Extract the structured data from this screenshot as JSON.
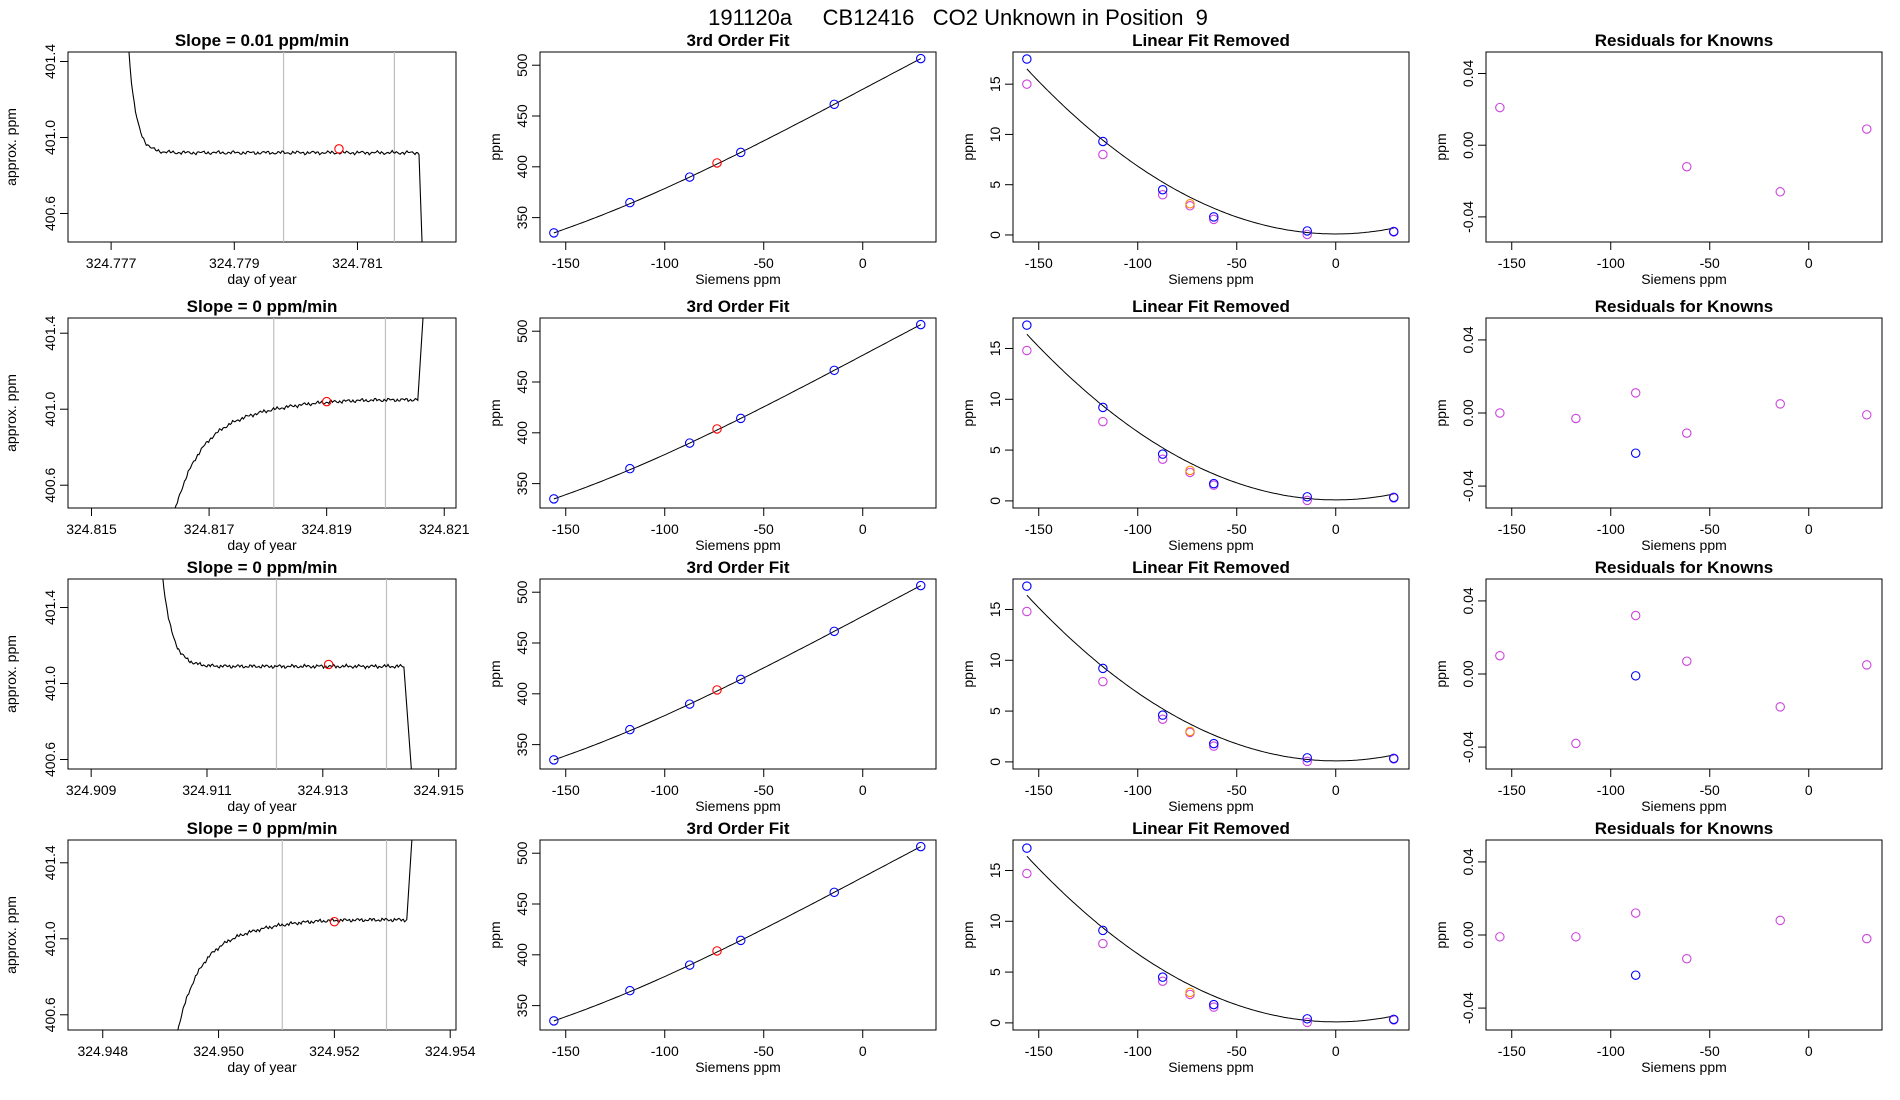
{
  "figure": {
    "title": "191120a     CB12416   CO2 Unknown in Position  9"
  },
  "colors": {
    "axis": "#000000",
    "trace": "#000000",
    "vline": "#bebebe",
    "known": "#0000ff",
    "unknown": "#ff0000",
    "unknown_lfr": "#ff8c00",
    "raw": "#cc44dd"
  },
  "chart_data": [
    {
      "type": "line",
      "row": 0,
      "col": 0,
      "title": "Slope =  0.01  ppm/min",
      "xlabel": "day of year",
      "ylabel": "approx. ppm",
      "xlim": [
        324.7763,
        324.7826
      ],
      "ylim": [
        400.45,
        401.45
      ],
      "xticks": [
        324.777,
        324.779,
        324.781
      ],
      "xtick_labels": [
        "324.777",
        "324.779",
        "324.781"
      ],
      "yticks": [
        400.6,
        401.0,
        401.4
      ],
      "ytick_labels": [
        "400.6",
        "401.0",
        "401.4"
      ],
      "vlines": [
        324.7798,
        324.7816
      ],
      "trace": {
        "x0": 324.7772,
        "x_settle": 324.7777,
        "x_end": 324.782,
        "x_fall": 324.78208,
        "level": 400.92,
        "start_from": "high"
      },
      "marker": {
        "x": 324.7807,
        "y": 400.94
      }
    },
    {
      "type": "line",
      "row": 1,
      "col": 0,
      "title": "Slope =  0  ppm/min",
      "xlabel": "day of year",
      "ylabel": "approx. ppm",
      "xlim": [
        324.8146,
        324.8212
      ],
      "ylim": [
        400.48,
        401.48
      ],
      "xticks": [
        324.815,
        324.817,
        324.819,
        324.821
      ],
      "xtick_labels": [
        "324.815",
        "324.817",
        "324.819",
        "324.821"
      ],
      "yticks": [
        400.6,
        401.0,
        401.4
      ],
      "ytick_labels": [
        "400.6",
        "401.0",
        "401.4"
      ],
      "vlines": [
        324.8181,
        324.82
      ],
      "trace": {
        "x0": 324.81605,
        "x_settle": 324.8175,
        "x_end": 324.82055,
        "x_fall": 324.8207,
        "level": 401.05,
        "start_from": "low"
      },
      "marker": {
        "x": 324.819,
        "y": 401.04
      }
    },
    {
      "type": "line",
      "row": 2,
      "col": 0,
      "title": "Slope =  0  ppm/min",
      "xlabel": "day of year",
      "ylabel": "approx. ppm",
      "xlim": [
        324.9086,
        324.9153
      ],
      "ylim": [
        400.55,
        401.55
      ],
      "xticks": [
        324.909,
        324.911,
        324.913,
        324.915
      ],
      "xtick_labels": [
        "324.909",
        "324.911",
        "324.913",
        "324.915"
      ],
      "yticks": [
        400.6,
        401.0,
        401.4
      ],
      "ytick_labels": [
        "400.6",
        "401.0",
        "401.4"
      ],
      "vlines": [
        324.9122,
        324.9141
      ],
      "trace": {
        "x0": 324.9101,
        "x_settle": 324.9108,
        "x_end": 324.9144,
        "x_fall": 324.9146,
        "level": 401.09,
        "start_from": "high"
      },
      "marker": {
        "x": 324.9131,
        "y": 401.1
      }
    },
    {
      "type": "line",
      "row": 3,
      "col": 0,
      "title": "Slope =  0  ppm/min",
      "xlabel": "day of year",
      "ylabel": "approx. ppm",
      "xlim": [
        324.9474,
        324.9541
      ],
      "ylim": [
        400.52,
        401.52
      ],
      "xticks": [
        324.948,
        324.95,
        324.952,
        324.954
      ],
      "xtick_labels": [
        "324.948",
        "324.950",
        "324.952",
        "324.954"
      ],
      "yticks": [
        400.6,
        401.0,
        401.4
      ],
      "ytick_labels": [
        "400.6",
        "401.0",
        "401.4"
      ],
      "vlines": [
        324.9511,
        324.9529
      ],
      "trace": {
        "x0": 324.94898,
        "x_settle": 324.9502,
        "x_end": 324.95325,
        "x_fall": 324.9534,
        "level": 401.1,
        "start_from": "low"
      },
      "marker": {
        "x": 324.952,
        "y": 401.09
      }
    },
    {
      "type": "scatter",
      "row": 0,
      "col": 1,
      "title": "3rd Order Fit",
      "xlabel": "Siemens ppm",
      "ylabel": "ppm",
      "xlim": [
        -163,
        37
      ],
      "ylim": [
        326,
        513
      ],
      "xticks": [
        -150,
        -100,
        -50,
        0
      ],
      "xtick_labels": [
        "-150",
        "-100",
        "-50",
        "0"
      ],
      "yticks": [
        350,
        400,
        450,
        500
      ],
      "ytick_labels": [
        "350",
        "400",
        "450",
        "500"
      ],
      "knowns": {
        "x": [
          -156,
          -117.6,
          -87.4,
          -61.6,
          -14.4,
          29.3
        ],
        "y": [
          335,
          364.7,
          389.9,
          414.2,
          461.5,
          506.5
        ]
      },
      "unknown": {
        "x": [
          -73.6
        ],
        "y": [
          403.8
        ]
      },
      "curve": {
        "type": "cubic_through_knowns"
      }
    },
    {
      "type": "scatter",
      "row": 1,
      "col": 1,
      "title": "3rd Order Fit",
      "xlabel": "Siemens ppm",
      "ylabel": "ppm",
      "xlim": [
        -163,
        37
      ],
      "ylim": [
        326,
        513
      ],
      "xticks": [
        -150,
        -100,
        -50,
        0
      ],
      "xtick_labels": [
        "-150",
        "-100",
        "-50",
        "0"
      ],
      "yticks": [
        350,
        400,
        450,
        500
      ],
      "ytick_labels": [
        "350",
        "400",
        "450",
        "500"
      ],
      "knowns": {
        "x": [
          -156,
          -117.6,
          -87.4,
          -61.6,
          -14.4,
          29.3
        ],
        "y": [
          335,
          364.7,
          389.9,
          414.2,
          461.5,
          506.5
        ]
      },
      "unknown": {
        "x": [
          -73.6
        ],
        "y": [
          403.8
        ]
      },
      "curve": {
        "type": "cubic_through_knowns"
      }
    },
    {
      "type": "scatter",
      "row": 2,
      "col": 1,
      "title": "3rd Order Fit",
      "xlabel": "Siemens ppm",
      "ylabel": "ppm",
      "xlim": [
        -163,
        37
      ],
      "ylim": [
        326,
        513
      ],
      "xticks": [
        -150,
        -100,
        -50,
        0
      ],
      "xtick_labels": [
        "-150",
        "-100",
        "-50",
        "0"
      ],
      "yticks": [
        350,
        400,
        450,
        500
      ],
      "ytick_labels": [
        "350",
        "400",
        "450",
        "500"
      ],
      "knowns": {
        "x": [
          -156,
          -117.6,
          -87.4,
          -61.6,
          -14.4,
          29.3
        ],
        "y": [
          335,
          364.7,
          389.9,
          414.2,
          461.5,
          506.5
        ]
      },
      "unknown": {
        "x": [
          -73.6
        ],
        "y": [
          403.8
        ]
      },
      "curve": {
        "type": "cubic_through_knowns"
      }
    },
    {
      "type": "scatter",
      "row": 3,
      "col": 1,
      "title": "3rd Order Fit",
      "xlabel": "Siemens ppm",
      "ylabel": "ppm",
      "xlim": [
        -163,
        37
      ],
      "ylim": [
        326,
        513
      ],
      "xticks": [
        -150,
        -100,
        -50,
        0
      ],
      "xtick_labels": [
        "-150",
        "-100",
        "-50",
        "0"
      ],
      "yticks": [
        350,
        400,
        450,
        500
      ],
      "ytick_labels": [
        "350",
        "400",
        "450",
        "500"
      ],
      "knowns": {
        "x": [
          -156,
          -117.6,
          -87.4,
          -61.6,
          -14.4,
          29.3
        ],
        "y": [
          335,
          364.7,
          389.9,
          414.2,
          461.5,
          506.5
        ]
      },
      "unknown": {
        "x": [
          -73.6
        ],
        "y": [
          403.8
        ]
      },
      "curve": {
        "type": "cubic_through_knowns"
      }
    },
    {
      "type": "scatter",
      "row": 0,
      "col": 2,
      "title": "Linear Fit Removed",
      "xlabel": "Siemens ppm",
      "ylabel": "ppm",
      "xlim": [
        -163,
        37
      ],
      "ylim": [
        -0.7,
        18.2
      ],
      "xticks": [
        -150,
        -100,
        -50,
        0
      ],
      "xtick_labels": [
        "-150",
        "-100",
        "-50",
        "0"
      ],
      "yticks": [
        0,
        5,
        10,
        15
      ],
      "ytick_labels": [
        "0",
        "5",
        "10",
        "15"
      ],
      "knowns": {
        "x": [
          -156,
          -117.6,
          -87.4,
          -61.6,
          -14.4,
          29.3
        ],
        "y": [
          17.5,
          9.3,
          4.5,
          1.8,
          0.4,
          0.35
        ]
      },
      "raw": {
        "x": [
          -156,
          -117.6,
          -87.4,
          -73.6,
          -61.6,
          -14.4,
          29.3
        ],
        "y": [
          15,
          8,
          4.0,
          2.9,
          1.55,
          0.05,
          0.3
        ]
      },
      "unknown": {
        "x": [
          -73.6
        ],
        "y": [
          3.1
        ]
      },
      "curve": {
        "type": "quadratic",
        "a": 0.0006745,
        "b": 0,
        "c": 0.1
      }
    },
    {
      "type": "scatter",
      "row": 1,
      "col": 2,
      "title": "Linear Fit Removed",
      "xlabel": "Siemens ppm",
      "ylabel": "ppm",
      "xlim": [
        -163,
        37
      ],
      "ylim": [
        -0.7,
        18.0
      ],
      "xticks": [
        -150,
        -100,
        -50,
        0
      ],
      "xtick_labels": [
        "-150",
        "-100",
        "-50",
        "0"
      ],
      "yticks": [
        0,
        5,
        10,
        15
      ],
      "ytick_labels": [
        "0",
        "5",
        "10",
        "15"
      ],
      "knowns": {
        "x": [
          -156,
          -117.6,
          -87.4,
          -61.6,
          -14.4,
          29.3
        ],
        "y": [
          17.3,
          9.2,
          4.6,
          1.7,
          0.4,
          0.35
        ]
      },
      "raw": {
        "x": [
          -156,
          -117.6,
          -87.4,
          -73.6,
          -61.6,
          -14.4,
          29.3
        ],
        "y": [
          14.8,
          7.8,
          4.1,
          2.8,
          1.55,
          0.05,
          0.3
        ]
      },
      "unknown": {
        "x": [
          -73.6
        ],
        "y": [
          3.0
        ]
      },
      "curve": {
        "type": "quadratic",
        "a": 0.00067,
        "b": 0,
        "c": 0.1
      }
    },
    {
      "type": "scatter",
      "row": 2,
      "col": 2,
      "title": "Linear Fit Removed",
      "xlabel": "Siemens ppm",
      "ylabel": "ppm",
      "xlim": [
        -163,
        37
      ],
      "ylim": [
        -0.7,
        18.0
      ],
      "xticks": [
        -150,
        -100,
        -50,
        0
      ],
      "xtick_labels": [
        "-150",
        "-100",
        "-50",
        "0"
      ],
      "yticks": [
        0,
        5,
        10,
        15
      ],
      "ytick_labels": [
        "0",
        "5",
        "10",
        "15"
      ],
      "knowns": {
        "x": [
          -156,
          -117.6,
          -87.4,
          -61.6,
          -14.4,
          29.3
        ],
        "y": [
          17.3,
          9.2,
          4.6,
          1.8,
          0.4,
          0.35
        ]
      },
      "raw": {
        "x": [
          -156,
          -117.6,
          -87.4,
          -73.6,
          -61.6,
          -14.4,
          29.3
        ],
        "y": [
          14.8,
          7.9,
          4.2,
          2.9,
          1.55,
          0.05,
          0.3
        ]
      },
      "unknown": {
        "x": [
          -73.6
        ],
        "y": [
          3.0
        ]
      },
      "curve": {
        "type": "quadratic",
        "a": 0.00067,
        "b": 0,
        "c": 0.1
      }
    },
    {
      "type": "scatter",
      "row": 3,
      "col": 2,
      "title": "Linear Fit Removed",
      "xlabel": "Siemens ppm",
      "ylabel": "ppm",
      "xlim": [
        -163,
        37
      ],
      "ylim": [
        -0.7,
        18.0
      ],
      "xticks": [
        -150,
        -100,
        -50,
        0
      ],
      "xtick_labels": [
        "-150",
        "-100",
        "-50",
        "0"
      ],
      "yticks": [
        0,
        5,
        10,
        15
      ],
      "ytick_labels": [
        "0",
        "5",
        "10",
        "15"
      ],
      "knowns": {
        "x": [
          -156,
          -117.6,
          -87.4,
          -61.6,
          -14.4,
          29.3
        ],
        "y": [
          17.2,
          9.1,
          4.5,
          1.8,
          0.4,
          0.35
        ]
      },
      "raw": {
        "x": [
          -156,
          -117.6,
          -87.4,
          -73.6,
          -61.6,
          -14.4,
          29.3
        ],
        "y": [
          14.7,
          7.8,
          4.1,
          2.8,
          1.55,
          0.05,
          0.3
        ]
      },
      "unknown": {
        "x": [
          -73.6
        ],
        "y": [
          3.0
        ]
      },
      "curve": {
        "type": "quadratic",
        "a": 0.00067,
        "b": 0,
        "c": 0.1
      }
    },
    {
      "type": "scatter",
      "row": 0,
      "col": 3,
      "title": "Residuals for Knowns",
      "xlabel": "Siemens ppm",
      "ylabel": "ppm",
      "xlim": [
        -163,
        37
      ],
      "ylim": [
        -0.054,
        0.052
      ],
      "xticks": [
        -150,
        -100,
        -50,
        0
      ],
      "xtick_labels": [
        "-150",
        "-100",
        "-50",
        "0"
      ],
      "yticks": [
        -0.04,
        0.0,
        0.04
      ],
      "ytick_labels": [
        "-0.04",
        "0.00",
        "0.04"
      ],
      "raw": {
        "x": [
          -156,
          -61.6,
          -14.4,
          29.3
        ],
        "y": [
          0.021,
          -0.012,
          -0.026,
          0.009
        ]
      },
      "knowns": {
        "x": [],
        "y": []
      }
    },
    {
      "type": "scatter",
      "row": 1,
      "col": 3,
      "title": "Residuals for Knowns",
      "xlabel": "Siemens ppm",
      "ylabel": "ppm",
      "xlim": [
        -163,
        37
      ],
      "ylim": [
        -0.052,
        0.052
      ],
      "xticks": [
        -150,
        -100,
        -50,
        0
      ],
      "xtick_labels": [
        "-150",
        "-100",
        "-50",
        "0"
      ],
      "yticks": [
        -0.04,
        0.0,
        0.04
      ],
      "ytick_labels": [
        "-0.04",
        "0.00",
        "0.04"
      ],
      "raw": {
        "x": [
          -156,
          -117.6,
          -87.4,
          -61.6,
          -14.4,
          29.3
        ],
        "y": [
          0.0,
          -0.003,
          0.011,
          -0.011,
          0.005,
          -0.001
        ]
      },
      "knowns": {
        "x": [
          -87.4
        ],
        "y": [
          -0.022
        ]
      }
    },
    {
      "type": "scatter",
      "row": 2,
      "col": 3,
      "title": "Residuals for Knowns",
      "xlabel": "Siemens ppm",
      "ylabel": "ppm",
      "xlim": [
        -163,
        37
      ],
      "ylim": [
        -0.052,
        0.052
      ],
      "xticks": [
        -150,
        -100,
        -50,
        0
      ],
      "xtick_labels": [
        "-150",
        "-100",
        "-50",
        "0"
      ],
      "yticks": [
        -0.04,
        0.0,
        0.04
      ],
      "ytick_labels": [
        "-0.04",
        "0.00",
        "0.04"
      ],
      "raw": {
        "x": [
          -156,
          -117.6,
          -87.4,
          -61.6,
          -14.4,
          29.3
        ],
        "y": [
          0.01,
          -0.038,
          0.032,
          0.007,
          -0.018,
          0.005
        ]
      },
      "knowns": {
        "x": [
          -87.4
        ],
        "y": [
          -0.001
        ]
      }
    },
    {
      "type": "scatter",
      "row": 3,
      "col": 3,
      "title": "Residuals for Knowns",
      "xlabel": "Siemens ppm",
      "ylabel": "ppm",
      "xlim": [
        -163,
        37
      ],
      "ylim": [
        -0.052,
        0.052
      ],
      "xticks": [
        -150,
        -100,
        -50,
        0
      ],
      "xtick_labels": [
        "-150",
        "-100",
        "-50",
        "0"
      ],
      "yticks": [
        -0.04,
        0.0,
        0.04
      ],
      "ytick_labels": [
        "-0.04",
        "0.00",
        "0.04"
      ],
      "raw": {
        "x": [
          -156,
          -117.6,
          -87.4,
          -61.6,
          -14.4,
          29.3
        ],
        "y": [
          -0.001,
          -0.001,
          0.012,
          -0.013,
          0.008,
          -0.002
        ]
      },
      "knowns": {
        "x": [
          -87.4
        ],
        "y": [
          -0.022
        ]
      }
    }
  ]
}
